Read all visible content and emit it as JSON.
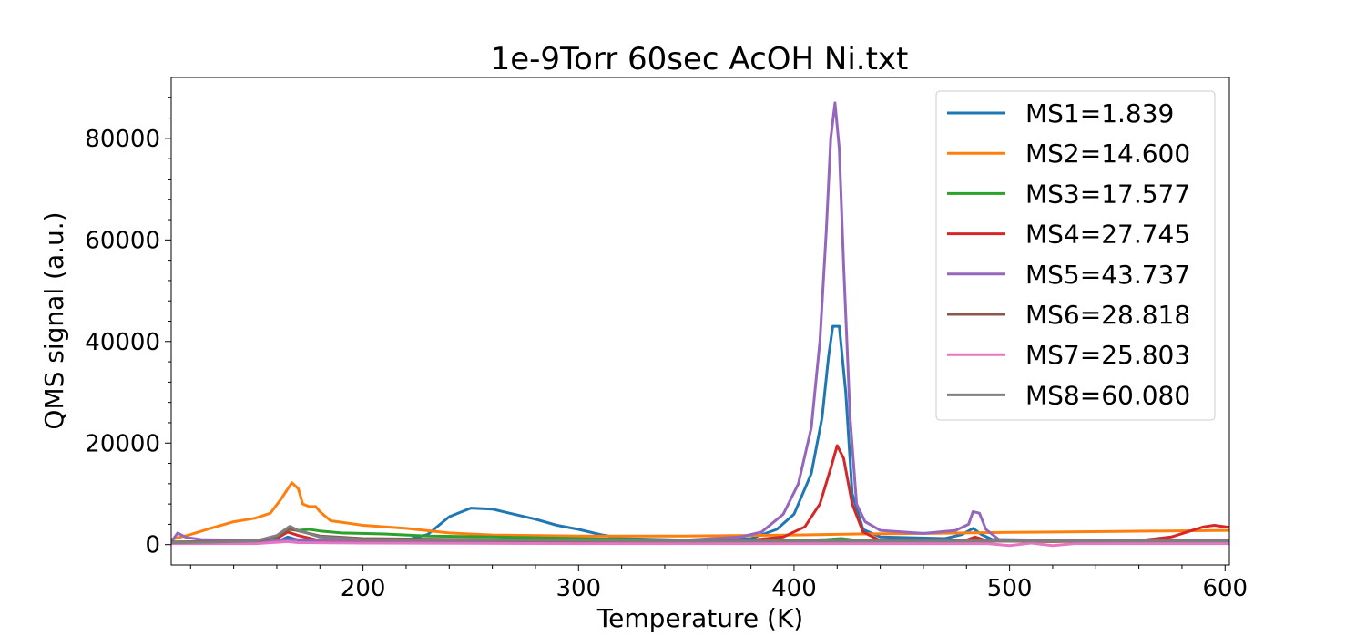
{
  "chart_data": {
    "type": "line",
    "title": "1e-9Torr 60sec AcOH Ni.txt",
    "xlabel": "Temperature (K)",
    "ylabel": "QMS signal (a.u.)",
    "xlim": [
      111,
      602
    ],
    "ylim": [
      -4000,
      92000
    ],
    "xticks": [
      200,
      300,
      400,
      500,
      600
    ],
    "yticks": [
      0,
      20000,
      40000,
      60000,
      80000
    ],
    "grid": false,
    "legend_position": "top-right",
    "series": [
      {
        "name": "MS1=1.839",
        "color": "#1f77b4",
        "points": [
          [
            111,
            300
          ],
          [
            130,
            300
          ],
          [
            160,
            500
          ],
          [
            165,
            1500
          ],
          [
            170,
            900
          ],
          [
            180,
            800
          ],
          [
            200,
            700
          ],
          [
            220,
            900
          ],
          [
            230,
            2000
          ],
          [
            240,
            5500
          ],
          [
            250,
            7200
          ],
          [
            260,
            7000
          ],
          [
            270,
            6000
          ],
          [
            280,
            5000
          ],
          [
            290,
            3800
          ],
          [
            300,
            3000
          ],
          [
            310,
            2000
          ],
          [
            320,
            1200
          ],
          [
            350,
            900
          ],
          [
            380,
            1200
          ],
          [
            392,
            3000
          ],
          [
            400,
            6000
          ],
          [
            408,
            14000
          ],
          [
            413,
            25000
          ],
          [
            416,
            37000
          ],
          [
            418,
            43000
          ],
          [
            421,
            43000
          ],
          [
            424,
            30000
          ],
          [
            427,
            10000
          ],
          [
            432,
            3000
          ],
          [
            440,
            1500
          ],
          [
            470,
            1200
          ],
          [
            478,
            2000
          ],
          [
            483,
            3200
          ],
          [
            487,
            2000
          ],
          [
            492,
            1000
          ],
          [
            520,
            900
          ],
          [
            560,
            900
          ],
          [
            602,
            900
          ]
        ]
      },
      {
        "name": "MS2=14.600",
        "color": "#ff7f0e",
        "points": [
          [
            111,
            1000
          ],
          [
            120,
            2000
          ],
          [
            130,
            3300
          ],
          [
            140,
            4500
          ],
          [
            150,
            5200
          ],
          [
            157,
            6200
          ],
          [
            162,
            9000
          ],
          [
            167,
            12200
          ],
          [
            170,
            11000
          ],
          [
            172,
            8000
          ],
          [
            175,
            7500
          ],
          [
            178,
            7500
          ],
          [
            180,
            6500
          ],
          [
            185,
            4700
          ],
          [
            200,
            3800
          ],
          [
            220,
            3200
          ],
          [
            240,
            2300
          ],
          [
            260,
            1900
          ],
          [
            300,
            1700
          ],
          [
            350,
            1700
          ],
          [
            400,
            1900
          ],
          [
            430,
            2100
          ],
          [
            460,
            2200
          ],
          [
            500,
            2400
          ],
          [
            550,
            2600
          ],
          [
            602,
            2800
          ]
        ]
      },
      {
        "name": "MS3=17.577",
        "color": "#2ca02c",
        "points": [
          [
            111,
            500
          ],
          [
            130,
            600
          ],
          [
            150,
            700
          ],
          [
            160,
            1500
          ],
          [
            165,
            3000
          ],
          [
            170,
            2800
          ],
          [
            175,
            3000
          ],
          [
            180,
            2700
          ],
          [
            190,
            2300
          ],
          [
            210,
            2100
          ],
          [
            230,
            1700
          ],
          [
            260,
            1500
          ],
          [
            300,
            1200
          ],
          [
            350,
            900
          ],
          [
            400,
            800
          ],
          [
            415,
            1000
          ],
          [
            422,
            1200
          ],
          [
            430,
            800
          ],
          [
            480,
            900
          ],
          [
            500,
            800
          ],
          [
            550,
            800
          ],
          [
            602,
            800
          ]
        ]
      },
      {
        "name": "MS4=27.745",
        "color": "#d62728",
        "points": [
          [
            111,
            400
          ],
          [
            130,
            500
          ],
          [
            150,
            600
          ],
          [
            160,
            1200
          ],
          [
            165,
            2500
          ],
          [
            170,
            1800
          ],
          [
            180,
            800
          ],
          [
            200,
            700
          ],
          [
            250,
            600
          ],
          [
            300,
            600
          ],
          [
            350,
            600
          ],
          [
            380,
            900
          ],
          [
            395,
            1500
          ],
          [
            405,
            3500
          ],
          [
            412,
            8000
          ],
          [
            417,
            15000
          ],
          [
            420,
            19500
          ],
          [
            423,
            17000
          ],
          [
            427,
            8000
          ],
          [
            432,
            2500
          ],
          [
            440,
            800
          ],
          [
            480,
            900
          ],
          [
            484,
            1500
          ],
          [
            490,
            700
          ],
          [
            520,
            600
          ],
          [
            560,
            800
          ],
          [
            575,
            1500
          ],
          [
            590,
            3500
          ],
          [
            595,
            3800
          ],
          [
            602,
            3400
          ]
        ]
      },
      {
        "name": "MS5=43.737",
        "color": "#9467bd",
        "points": [
          [
            111,
            500
          ],
          [
            114,
            2300
          ],
          [
            118,
            1400
          ],
          [
            125,
            1000
          ],
          [
            150,
            800
          ],
          [
            165,
            1000
          ],
          [
            200,
            900
          ],
          [
            250,
            800
          ],
          [
            300,
            800
          ],
          [
            350,
            900
          ],
          [
            375,
            1500
          ],
          [
            385,
            2500
          ],
          [
            395,
            6000
          ],
          [
            402,
            12000
          ],
          [
            408,
            23000
          ],
          [
            412,
            40000
          ],
          [
            415,
            62000
          ],
          [
            417,
            80000
          ],
          [
            419,
            87000
          ],
          [
            421,
            78000
          ],
          [
            423,
            55000
          ],
          [
            426,
            25000
          ],
          [
            429,
            8000
          ],
          [
            433,
            4500
          ],
          [
            440,
            2800
          ],
          [
            460,
            2200
          ],
          [
            475,
            2800
          ],
          [
            481,
            4000
          ],
          [
            483,
            6500
          ],
          [
            486,
            6200
          ],
          [
            489,
            3000
          ],
          [
            495,
            1000
          ],
          [
            520,
            800
          ],
          [
            560,
            800
          ],
          [
            602,
            800
          ]
        ]
      },
      {
        "name": "MS6=28.818",
        "color": "#8c564b",
        "points": [
          [
            111,
            500
          ],
          [
            130,
            600
          ],
          [
            150,
            700
          ],
          [
            160,
            1500
          ],
          [
            166,
            3200
          ],
          [
            170,
            2700
          ],
          [
            180,
            1700
          ],
          [
            200,
            1200
          ],
          [
            250,
            1000
          ],
          [
            300,
            800
          ],
          [
            350,
            700
          ],
          [
            400,
            700
          ],
          [
            450,
            700
          ],
          [
            500,
            700
          ],
          [
            550,
            700
          ],
          [
            602,
            700
          ]
        ]
      },
      {
        "name": "MS7=25.803",
        "color": "#e377c2",
        "points": [
          [
            111,
            200
          ],
          [
            150,
            200
          ],
          [
            165,
            600
          ],
          [
            170,
            400
          ],
          [
            200,
            300
          ],
          [
            300,
            200
          ],
          [
            400,
            200
          ],
          [
            450,
            200
          ],
          [
            490,
            200
          ],
          [
            500,
            -200
          ],
          [
            510,
            300
          ],
          [
            520,
            -200
          ],
          [
            530,
            200
          ],
          [
            602,
            200
          ]
        ]
      },
      {
        "name": "MS8=60.080",
        "color": "#7f7f7f",
        "points": [
          [
            111,
            400
          ],
          [
            130,
            500
          ],
          [
            150,
            700
          ],
          [
            160,
            1800
          ],
          [
            166,
            3600
          ],
          [
            170,
            2800
          ],
          [
            180,
            1500
          ],
          [
            200,
            1000
          ],
          [
            250,
            900
          ],
          [
            300,
            800
          ],
          [
            350,
            700
          ],
          [
            400,
            700
          ],
          [
            450,
            700
          ],
          [
            500,
            700
          ],
          [
            550,
            700
          ],
          [
            602,
            700
          ]
        ]
      }
    ]
  }
}
